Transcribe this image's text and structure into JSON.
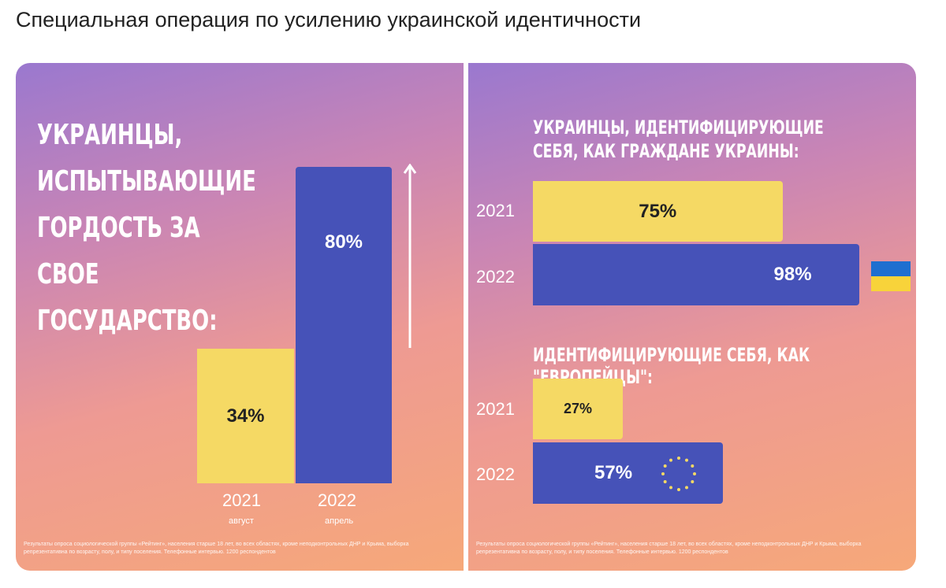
{
  "title": "Специальная операция по усилению украинской идентичности",
  "footnote": "Результаты опроса социологической группы «Рейтинг», населения старше 18 лет, во всех областях, кроме неподконтрольных ДНР и Крыма, выборка репрезентативна по возрасту, полу, и типу поселения. Телефонные интервью. 1200 респондентов",
  "colors": {
    "yellow": "#f5d964",
    "blue": "#4652b8"
  },
  "chart_data": [
    {
      "type": "bar",
      "title": "Украинцы, испытывающие гордость за свое государство:",
      "categories": [
        "2021",
        "2022"
      ],
      "sublabels": [
        "август",
        "апрель"
      ],
      "values": [
        34,
        80
      ],
      "labels": [
        "34%",
        "80%"
      ],
      "annotation": "up-arrow"
    },
    {
      "type": "bar",
      "orientation": "horizontal",
      "title": "Украинцы, идентифицирующие себя, как граждане Украины:",
      "categories": [
        "2021",
        "2022"
      ],
      "values": [
        75,
        98
      ],
      "labels": [
        "75%",
        "98%"
      ],
      "icon": "ukraine-flag-icon"
    },
    {
      "type": "bar",
      "orientation": "horizontal",
      "title": "Идентифицирующие себя, как \"европейцы\":",
      "categories": [
        "2021",
        "2022"
      ],
      "values": [
        27,
        57
      ],
      "labels": [
        "27%",
        "57%"
      ],
      "icon": "eu-flag-icon"
    }
  ]
}
